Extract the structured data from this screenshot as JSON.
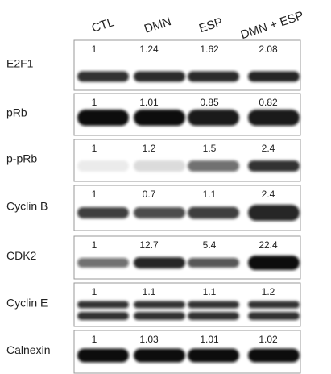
{
  "columns": [
    "CTL",
    "DMN",
    "ESP",
    "DMN + ESP"
  ],
  "rows": [
    {
      "label": "E2F1",
      "values": [
        "1",
        "1.24",
        "1.62",
        "2.08"
      ]
    },
    {
      "label": "pRb",
      "values": [
        "1",
        "1.01",
        "0.85",
        "0.82"
      ]
    },
    {
      "label": "p-pRb",
      "values": [
        "1",
        "1.2",
        "1.5",
        "2.4"
      ]
    },
    {
      "label": "Cyclin B",
      "values": [
        "1",
        "0.7",
        "1.1",
        "2.4"
      ]
    },
    {
      "label": "CDK2",
      "values": [
        "1",
        "12.7",
        "5.4",
        "22.4"
      ]
    },
    {
      "label": "Cyclin E",
      "values": [
        "1",
        "1.1",
        "1.1",
        "1.2"
      ]
    },
    {
      "label": "Calnexin",
      "values": [
        "1",
        "1.03",
        "1.01",
        "1.02"
      ]
    }
  ]
}
